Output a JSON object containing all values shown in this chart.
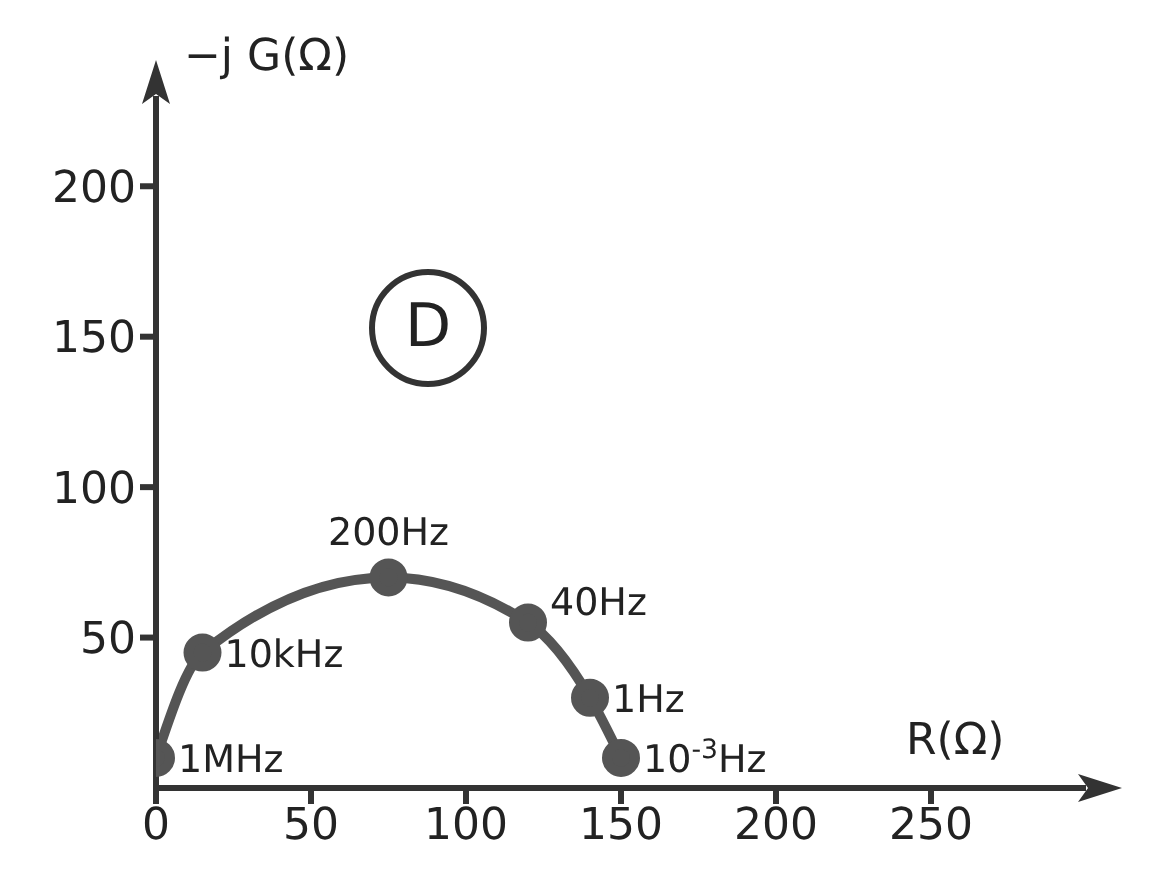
{
  "chart_data": {
    "type": "line",
    "xlabel": "R(Ω)",
    "ylabel": "−j G(Ω)",
    "x": [
      0,
      15,
      75,
      120,
      140,
      150
    ],
    "series": [
      {
        "color": "#555555",
        "values": [
          10,
          45,
          70,
          55,
          30,
          10
        ]
      }
    ],
    "xlim": [
      0,
      300
    ],
    "ylim": [
      0,
      230
    ],
    "xticks": [
      0,
      50,
      100,
      150,
      200,
      250
    ],
    "yticks": [
      50,
      100,
      150,
      200
    ],
    "marker": "circle",
    "grid": false,
    "annotations": [
      "D",
      {
        "text": "1MHz",
        "x": 0,
        "y": 10
      },
      {
        "text": "10kHz",
        "x": 15,
        "y": 45
      },
      {
        "text": "200Hz",
        "x": 75,
        "y": 70
      },
      {
        "text": "40Hz",
        "x": 120,
        "y": 55
      },
      {
        "text": "1Hz",
        "x": 140,
        "y": 30
      },
      {
        "text": "10$^{-3}$Hz",
        "x": 150,
        "y": 10
      }
    ]
  }
}
